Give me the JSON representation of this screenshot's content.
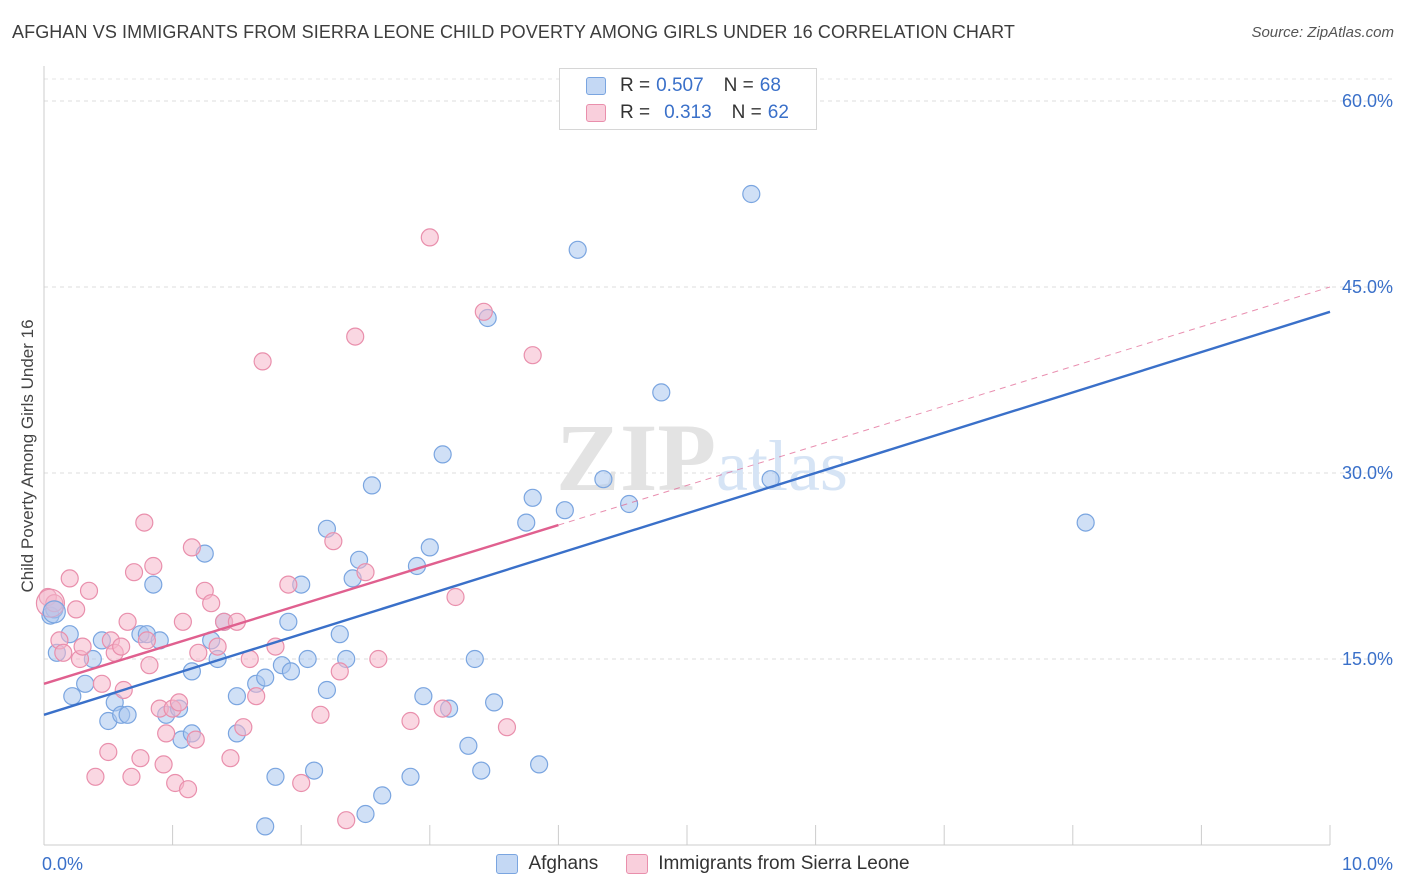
{
  "title": "AFGHAN VS IMMIGRANTS FROM SIERRA LEONE CHILD POVERTY AMONG GIRLS UNDER 16 CORRELATION CHART",
  "source": "Source: ZipAtlas.com",
  "watermark": {
    "zip": "ZIP",
    "atlas": "atlas"
  },
  "legend_top": {
    "rows": [
      {
        "r_label": "R =",
        "r_value": "0.507",
        "n_label": "N =",
        "n_value": "68",
        "color": "#a9c6ef"
      },
      {
        "r_label": "R =",
        "r_value": "0.313",
        "n_label": "N =",
        "n_value": "62",
        "color": "#f5b7cb"
      }
    ]
  },
  "legend_bottom": [
    {
      "label": "Afghans",
      "color": "#a9c6ef"
    },
    {
      "label": "Immigrants from Sierra Leone",
      "color": "#f5b7cb"
    }
  ],
  "chart_data": {
    "type": "scatter",
    "title": "AFGHAN VS IMMIGRANTS FROM SIERRA LEONE CHILD POVERTY AMONG GIRLS UNDER 16 CORRELATION CHART",
    "xlabel": "",
    "ylabel": "Child Poverty Among Girls Under 16",
    "xlim": [
      0,
      10
    ],
    "ylim": [
      0,
      62.5
    ],
    "x_tick_labels": [
      {
        "value": 0,
        "label": "0.0%"
      },
      {
        "value": 10,
        "label": "10.0%"
      }
    ],
    "y_tick_labels": [
      {
        "value": 15,
        "label": "15.0%"
      },
      {
        "value": 30,
        "label": "30.0%"
      },
      {
        "value": 45,
        "label": "45.0%"
      },
      {
        "value": 60,
        "label": "60.0%"
      }
    ],
    "grid": true,
    "legend_position": "top-center",
    "series": [
      {
        "name": "Afghans",
        "color": "#a9c6ef",
        "stroke": "#7aa5e0",
        "line_color": "#3a70c9",
        "trend": {
          "x": [
            0,
            10
          ],
          "y": [
            10.5,
            43.0
          ],
          "dashed_extension": false
        },
        "points": [
          [
            0.05,
            18.5
          ],
          [
            0.08,
            19.0
          ],
          [
            0.1,
            15.5
          ],
          [
            0.2,
            17.0
          ],
          [
            0.22,
            12.0
          ],
          [
            0.32,
            13.0
          ],
          [
            0.38,
            15.0
          ],
          [
            0.45,
            16.5
          ],
          [
            0.5,
            10.0
          ],
          [
            0.55,
            11.5
          ],
          [
            0.6,
            10.5
          ],
          [
            0.65,
            10.5
          ],
          [
            0.75,
            17.0
          ],
          [
            0.8,
            17.0
          ],
          [
            0.85,
            21.0
          ],
          [
            0.9,
            16.5
          ],
          [
            0.95,
            10.5
          ],
          [
            1.05,
            11.0
          ],
          [
            1.07,
            8.5
          ],
          [
            1.15,
            9.0
          ],
          [
            1.15,
            14.0
          ],
          [
            1.25,
            23.5
          ],
          [
            1.3,
            16.5
          ],
          [
            1.35,
            15.0
          ],
          [
            1.4,
            18.0
          ],
          [
            1.5,
            12.0
          ],
          [
            1.5,
            9.0
          ],
          [
            1.65,
            13.0
          ],
          [
            1.72,
            1.5
          ],
          [
            1.72,
            13.5
          ],
          [
            1.8,
            5.5
          ],
          [
            1.85,
            14.5
          ],
          [
            1.9,
            18.0
          ],
          [
            1.92,
            14.0
          ],
          [
            2.0,
            21.0
          ],
          [
            2.05,
            15.0
          ],
          [
            2.1,
            6.0
          ],
          [
            2.2,
            12.5
          ],
          [
            2.2,
            25.5
          ],
          [
            2.3,
            17.0
          ],
          [
            2.35,
            15.0
          ],
          [
            2.4,
            21.5
          ],
          [
            2.45,
            23.0
          ],
          [
            2.5,
            2.5
          ],
          [
            2.55,
            29.0
          ],
          [
            2.63,
            4.0
          ],
          [
            2.85,
            5.5
          ],
          [
            2.9,
            22.5
          ],
          [
            2.95,
            12.0
          ],
          [
            3.0,
            24.0
          ],
          [
            3.1,
            31.5
          ],
          [
            3.15,
            11.0
          ],
          [
            3.3,
            8.0
          ],
          [
            3.35,
            15.0
          ],
          [
            3.4,
            6.0
          ],
          [
            3.5,
            11.5
          ],
          [
            3.75,
            26.0
          ],
          [
            3.8,
            28.0
          ],
          [
            3.85,
            6.5
          ],
          [
            4.05,
            27.0
          ],
          [
            4.15,
            48.0
          ],
          [
            4.35,
            29.5
          ],
          [
            4.55,
            27.5
          ],
          [
            4.8,
            36.5
          ],
          [
            5.5,
            52.5
          ],
          [
            5.65,
            29.5
          ],
          [
            3.45,
            42.5
          ],
          [
            8.1,
            26.0
          ]
        ]
      },
      {
        "name": "Immigrants from Sierra Leone",
        "color": "#f5b7cb",
        "stroke": "#e98fac",
        "line_color": "#e0608f",
        "trend": {
          "x": [
            0,
            4.0
          ],
          "y": [
            13.0,
            25.8
          ],
          "dashed_extension": true,
          "dash_x": [
            4.0,
            10
          ],
          "dash_y": [
            25.8,
            45.0
          ]
        },
        "points": [
          [
            0.03,
            20.0
          ],
          [
            0.08,
            19.5
          ],
          [
            0.12,
            16.5
          ],
          [
            0.15,
            15.5
          ],
          [
            0.2,
            21.5
          ],
          [
            0.25,
            19.0
          ],
          [
            0.28,
            15.0
          ],
          [
            0.3,
            16.0
          ],
          [
            0.35,
            20.5
          ],
          [
            0.4,
            5.5
          ],
          [
            0.45,
            13.0
          ],
          [
            0.5,
            7.5
          ],
          [
            0.52,
            16.5
          ],
          [
            0.55,
            15.5
          ],
          [
            0.6,
            16.0
          ],
          [
            0.62,
            12.5
          ],
          [
            0.65,
            18.0
          ],
          [
            0.68,
            5.5
          ],
          [
            0.7,
            22.0
          ],
          [
            0.75,
            7.0
          ],
          [
            0.78,
            26.0
          ],
          [
            0.8,
            16.5
          ],
          [
            0.82,
            14.5
          ],
          [
            0.85,
            22.5
          ],
          [
            0.9,
            11.0
          ],
          [
            0.93,
            6.5
          ],
          [
            0.95,
            9.0
          ],
          [
            1.0,
            11.0
          ],
          [
            1.02,
            5.0
          ],
          [
            1.05,
            11.5
          ],
          [
            1.08,
            18.0
          ],
          [
            1.12,
            4.5
          ],
          [
            1.15,
            24.0
          ],
          [
            1.2,
            15.5
          ],
          [
            1.25,
            20.5
          ],
          [
            1.3,
            19.5
          ],
          [
            1.35,
            16.0
          ],
          [
            1.4,
            18.0
          ],
          [
            1.45,
            7.0
          ],
          [
            1.5,
            18.0
          ],
          [
            1.55,
            9.5
          ],
          [
            1.6,
            15.0
          ],
          [
            1.65,
            12.0
          ],
          [
            1.7,
            39.0
          ],
          [
            1.8,
            16.0
          ],
          [
            1.9,
            21.0
          ],
          [
            2.0,
            5.0
          ],
          [
            2.15,
            10.5
          ],
          [
            2.25,
            24.5
          ],
          [
            2.3,
            14.0
          ],
          [
            2.35,
            2.0
          ],
          [
            2.42,
            41.0
          ],
          [
            2.5,
            22.0
          ],
          [
            2.6,
            15.0
          ],
          [
            2.85,
            10.0
          ],
          [
            3.0,
            49.0
          ],
          [
            3.1,
            11.0
          ],
          [
            3.2,
            20.0
          ],
          [
            3.42,
            43.0
          ],
          [
            3.6,
            9.5
          ],
          [
            3.8,
            39.5
          ],
          [
            1.18,
            8.5
          ]
        ]
      }
    ]
  }
}
